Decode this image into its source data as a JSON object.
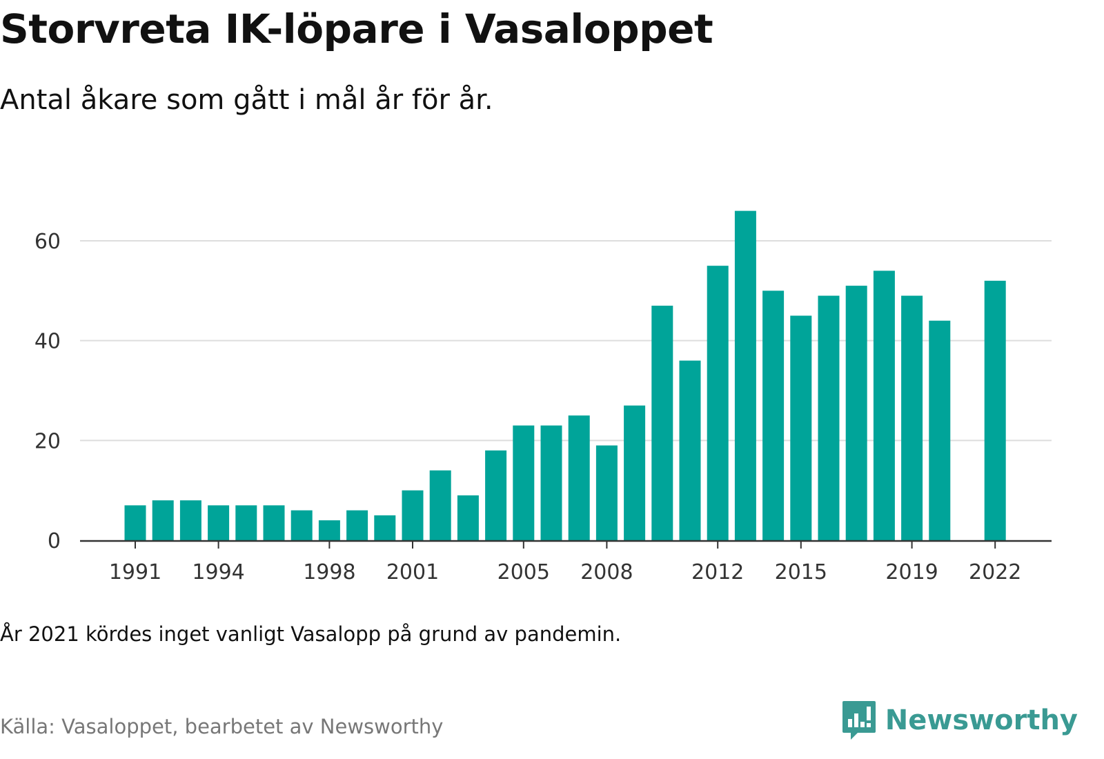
{
  "title": "Storvreta IK-löpare i Vasaloppet",
  "subtitle": "Antal åkare som gått i mål år för år.",
  "note": "År 2021 kördes inget vanligt Vasalopp på grund av pandemin.",
  "source": "Källa: Vasaloppet, bearbetet av Newsworthy",
  "brand": {
    "name": "Newsworthy",
    "icon": "newsworthy-logo-icon",
    "color": "#3a9a93"
  },
  "chart_data": {
    "type": "bar",
    "title": "Storvreta IK-löpare i Vasaloppet",
    "subtitle": "Antal åkare som gått i mål år för år.",
    "xlabel": "",
    "ylabel": "",
    "bar_color": "#00a499",
    "grid": true,
    "ylim": [
      0,
      68
    ],
    "yticks": [
      0,
      20,
      40,
      60
    ],
    "xticks": [
      1991,
      1994,
      1998,
      2001,
      2005,
      2008,
      2012,
      2015,
      2019,
      2022
    ],
    "x": [
      1991,
      1992,
      1993,
      1994,
      1995,
      1996,
      1997,
      1998,
      1999,
      2000,
      2001,
      2002,
      2003,
      2004,
      2005,
      2006,
      2007,
      2008,
      2009,
      2010,
      2011,
      2012,
      2013,
      2014,
      2015,
      2016,
      2017,
      2018,
      2019,
      2020,
      2021,
      2022
    ],
    "values": [
      7,
      8,
      8,
      7,
      7,
      7,
      6,
      4,
      6,
      5,
      10,
      14,
      9,
      18,
      23,
      23,
      25,
      19,
      27,
      47,
      36,
      55,
      66,
      50,
      45,
      49,
      51,
      54,
      49,
      44,
      null,
      52
    ]
  }
}
